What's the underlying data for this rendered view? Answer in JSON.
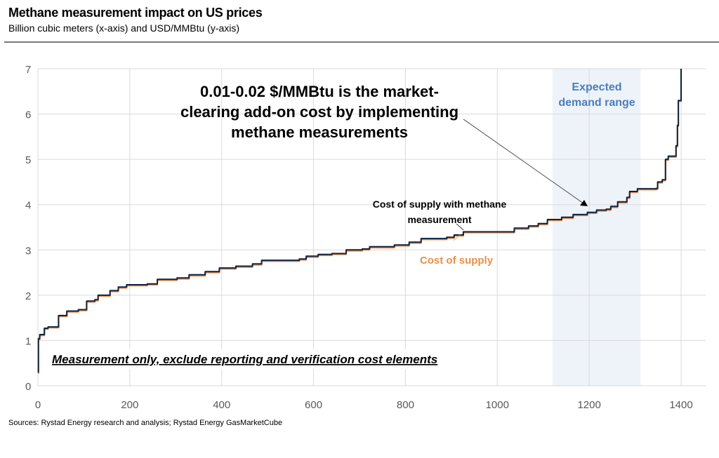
{
  "chart_data": {
    "type": "line",
    "title": "Methane measurement impact on US prices",
    "subtitle": "Billion cubic meters (x-axis) and USD/MMBtu (y-axis)",
    "xlabel": "",
    "ylabel": "",
    "xlim": [
      0,
      1450
    ],
    "ylim": [
      0,
      7
    ],
    "x_ticks": [
      "0",
      "200",
      "400",
      "600",
      "800",
      "1000",
      "1200",
      "1400"
    ],
    "y_ticks": [
      "0",
      "1",
      "2",
      "3",
      "4",
      "5",
      "6",
      "7"
    ],
    "grid": true,
    "shaded_region": {
      "label": "Expected demand range",
      "x_range": [
        1120,
        1312
      ],
      "color": "#eef3fa",
      "label_color": "#4a7ebb"
    },
    "series": [
      {
        "name": "Cost of supply",
        "color": "#e8904a",
        "x": [
          0,
          1,
          4,
          14,
          22,
          45,
          63,
          88,
          106,
          124,
          131,
          157,
          175,
          193,
          238,
          260,
          303,
          329,
          364,
          395,
          431,
          467,
          487,
          569,
          584,
          610,
          640,
          671,
          706,
          722,
          765,
          776,
          808,
          834,
          890,
          906,
          926,
          1012,
          1037,
          1068,
          1089,
          1109,
          1140,
          1165,
          1196,
          1216,
          1237,
          1247,
          1262,
          1282,
          1288,
          1305,
          1346,
          1349,
          1359,
          1366,
          1372,
          1387,
          1389,
          1392,
          1394,
          1400
        ],
        "y": [
          0.28,
          1.02,
          1.11,
          1.25,
          1.28,
          1.53,
          1.63,
          1.66,
          1.85,
          1.88,
          1.98,
          2.08,
          2.16,
          2.21,
          2.23,
          2.33,
          2.36,
          2.43,
          2.5,
          2.58,
          2.62,
          2.67,
          2.75,
          2.78,
          2.84,
          2.88,
          2.9,
          2.98,
          3.0,
          3.05,
          3.05,
          3.09,
          3.15,
          3.23,
          3.26,
          3.31,
          3.38,
          3.38,
          3.46,
          3.51,
          3.56,
          3.65,
          3.7,
          3.76,
          3.81,
          3.86,
          3.88,
          3.94,
          4.04,
          4.14,
          4.27,
          4.33,
          4.34,
          4.48,
          4.53,
          4.98,
          5.05,
          5.05,
          5.28,
          5.73,
          6.28,
          7.0
        ]
      },
      {
        "name": "Cost of supply with methane measurement",
        "color": "#0e2341",
        "x": [
          0,
          1,
          4,
          14,
          22,
          45,
          63,
          88,
          106,
          124,
          131,
          157,
          175,
          193,
          238,
          260,
          303,
          329,
          364,
          395,
          431,
          467,
          487,
          569,
          584,
          610,
          640,
          671,
          706,
          722,
          765,
          776,
          808,
          834,
          890,
          906,
          926,
          1012,
          1037,
          1068,
          1089,
          1109,
          1140,
          1165,
          1196,
          1216,
          1237,
          1247,
          1262,
          1282,
          1288,
          1305,
          1346,
          1349,
          1359,
          1366,
          1372,
          1387,
          1389,
          1392,
          1394,
          1400
        ],
        "y": [
          0.3,
          1.04,
          1.13,
          1.27,
          1.3,
          1.55,
          1.65,
          1.68,
          1.87,
          1.9,
          2.0,
          2.1,
          2.18,
          2.23,
          2.25,
          2.35,
          2.38,
          2.45,
          2.52,
          2.6,
          2.64,
          2.69,
          2.77,
          2.8,
          2.86,
          2.9,
          2.92,
          3.0,
          3.02,
          3.07,
          3.07,
          3.11,
          3.17,
          3.25,
          3.28,
          3.33,
          3.4,
          3.4,
          3.48,
          3.53,
          3.58,
          3.67,
          3.72,
          3.78,
          3.83,
          3.88,
          3.9,
          3.96,
          4.06,
          4.16,
          4.29,
          4.35,
          4.36,
          4.5,
          4.55,
          5.0,
          5.07,
          5.07,
          5.3,
          5.75,
          6.3,
          7.0
        ]
      }
    ],
    "annotations": {
      "main": [
        "0.01-0.02 $/MMBtu is the market-",
        "clearing add-on cost by implementing",
        "methane measurements"
      ],
      "measurement_label": [
        "Cost of supply with methane",
        "measurement"
      ],
      "supply_label": "Cost of supply",
      "note": "Measurement only, exclude reporting and verification cost elements"
    }
  },
  "source": "Sources: Rystad Energy research and analysis; Rystad Energy GasMarketCube"
}
